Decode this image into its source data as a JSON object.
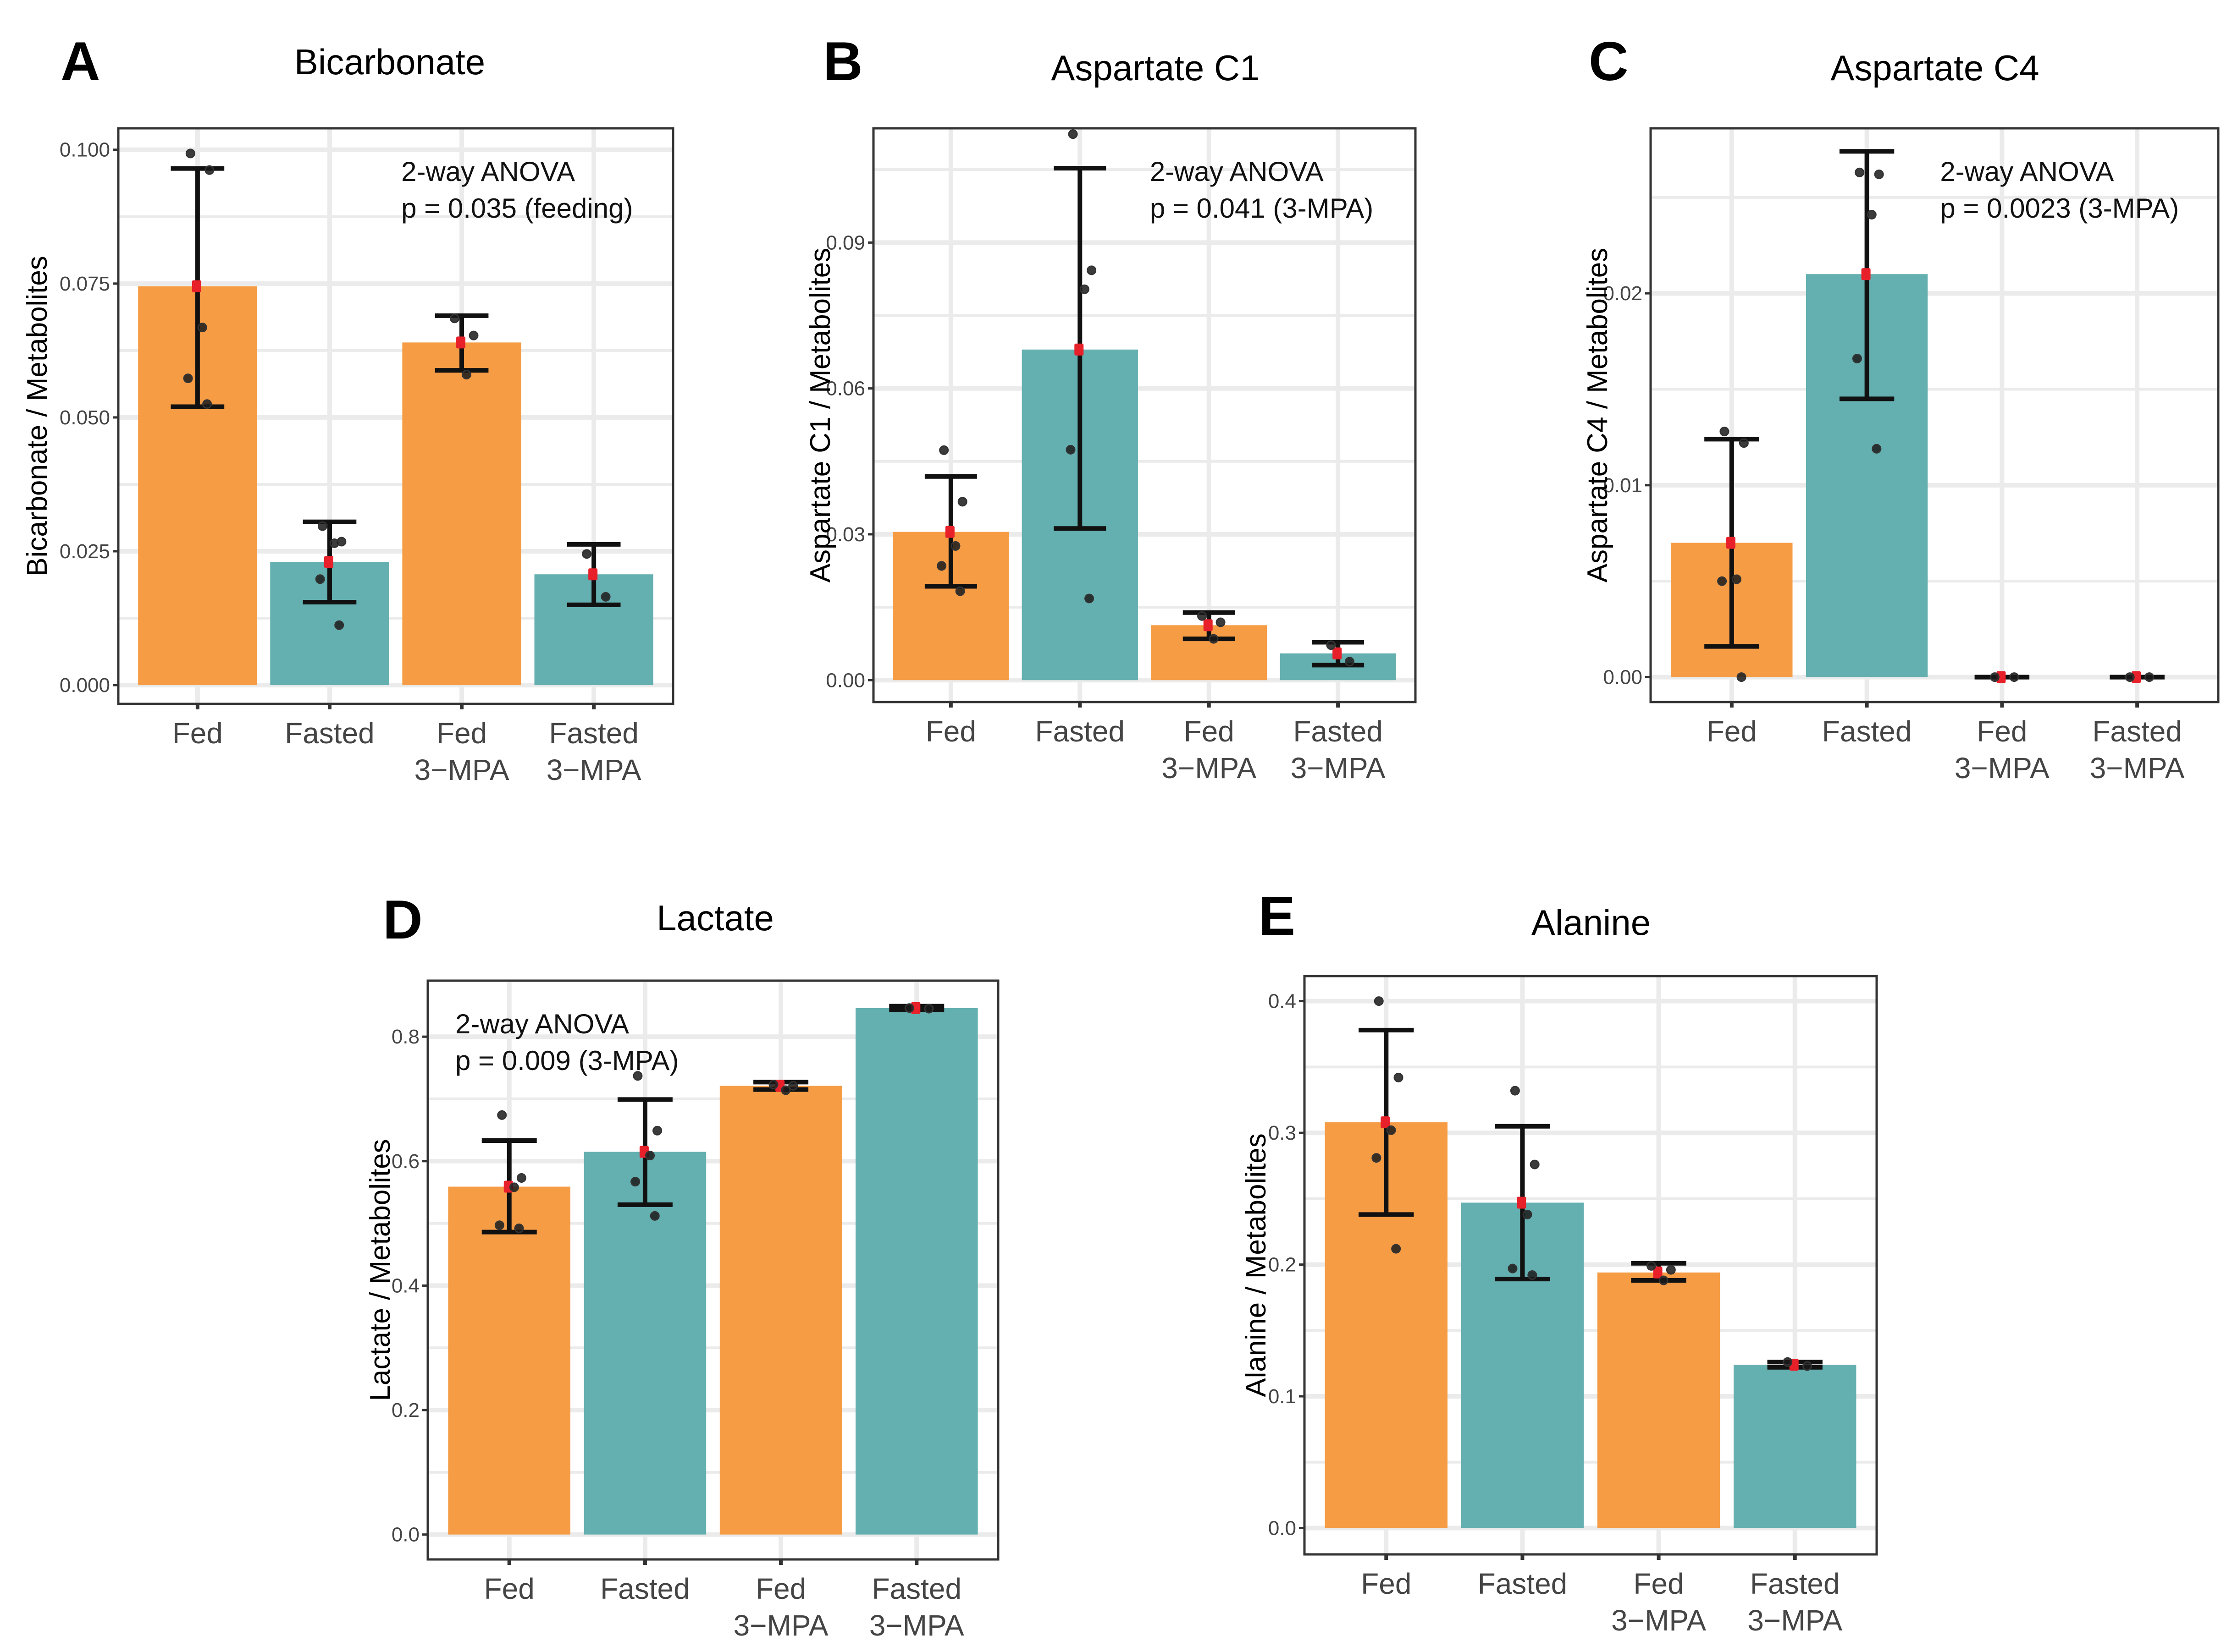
{
  "colors": {
    "fed": "#F5993F",
    "fasted": "#5FACAD",
    "mean_marker": "#E8202A",
    "points": "#1a1a1a",
    "errorbar": "#111111",
    "grid": "#EBEBEB",
    "axis": "#333333"
  },
  "chart_data": [
    {
      "panel": "A",
      "type": "bar",
      "title": "Bicarbonate",
      "xlabel": "",
      "ylabel": "Bicarbonate / Metabolites",
      "ylim": [
        -0.0035,
        0.104
      ],
      "yticks": [
        0.0,
        0.025,
        0.05,
        0.075,
        0.1
      ],
      "ytick_labels": [
        "0.000",
        "0.025",
        "0.050",
        "0.075",
        "0.100"
      ],
      "grid": true,
      "annotation": [
        "2-way ANOVA",
        "p = 0.035 (feeding)"
      ],
      "annotation_position": "top-right",
      "categories": [
        [
          "Fed"
        ],
        [
          "Fasted"
        ],
        [
          "Fed",
          "3−MPA"
        ],
        [
          "Fasted",
          "3−MPA"
        ]
      ],
      "groups": [
        "fed",
        "fasted",
        "fed",
        "fasted"
      ],
      "values": [
        0.0745,
        0.023,
        0.064,
        0.0207
      ],
      "errors": [
        [
          0.052,
          0.0965
        ],
        [
          0.0155,
          0.0305
        ],
        [
          0.0588,
          0.069
        ],
        [
          0.015,
          0.0263
        ]
      ],
      "points": [
        [
          0.0993,
          0.0962,
          0.0668,
          0.0573,
          0.0525
        ],
        [
          0.0297,
          0.0268,
          0.0265,
          0.0198,
          0.0112
        ],
        [
          0.0685,
          0.0653,
          0.058
        ],
        [
          0.0245,
          0.0165
        ]
      ]
    },
    {
      "panel": "B",
      "type": "bar",
      "title": "Aspartate C1",
      "xlabel": "",
      "ylabel": "Aspartate C1 /  Metabolites",
      "ylim": [
        -0.0045,
        0.1135
      ],
      "yticks": [
        0.0,
        0.03,
        0.06,
        0.09
      ],
      "ytick_labels": [
        "0.00",
        "0.03",
        "0.06",
        "0.09"
      ],
      "grid": true,
      "annotation": [
        "2-way ANOVA",
        "p = 0.041 (3-MPA)"
      ],
      "annotation_position": "top-right",
      "categories": [
        [
          "Fed"
        ],
        [
          "Fasted"
        ],
        [
          "Fed",
          "3−MPA"
        ],
        [
          "Fasted",
          "3−MPA"
        ]
      ],
      "groups": [
        "fed",
        "fasted",
        "fed",
        "fasted"
      ],
      "values": [
        0.0305,
        0.068,
        0.0113,
        0.0055
      ],
      "errors": [
        [
          0.0193,
          0.0419
        ],
        [
          0.0312,
          0.1053
        ],
        [
          0.0085,
          0.0139
        ],
        [
          0.0031,
          0.0078
        ]
      ],
      "points": [
        [
          0.0473,
          0.0367,
          0.0276,
          0.0235,
          0.0183
        ],
        [
          0.1123,
          0.0843,
          0.0804,
          0.0474,
          0.0168
        ],
        [
          0.0132,
          0.0119,
          0.0085
        ],
        [
          0.0072,
          0.0038
        ]
      ]
    },
    {
      "panel": "C",
      "type": "bar",
      "title": "Aspartate C4",
      "xlabel": "",
      "ylabel": "Aspartate C4 / Metabolites",
      "ylim": [
        -0.0013,
        0.0286
      ],
      "yticks": [
        0.0,
        0.01,
        0.02
      ],
      "ytick_labels": [
        "0.00",
        "0.01",
        "0.02"
      ],
      "grid": true,
      "annotation": [
        "2-way ANOVA",
        "p = 0.0023 (3-MPA)"
      ],
      "annotation_position": "top-right",
      "categories": [
        [
          "Fed"
        ],
        [
          "Fasted"
        ],
        [
          "Fed",
          "3−MPA"
        ],
        [
          "Fasted",
          "3−MPA"
        ]
      ],
      "groups": [
        "fed",
        "fasted",
        "fed",
        "fasted"
      ],
      "values": [
        0.007,
        0.021,
        0.0,
        0.0
      ],
      "errors": [
        [
          0.0016,
          0.0124
        ],
        [
          0.0145,
          0.0274
        ],
        [
          0.0,
          0.0
        ],
        [
          0.0,
          0.0
        ]
      ],
      "points": [
        [
          0.0128,
          0.0122,
          0.0051,
          0.005,
          0.0
        ],
        [
          0.0263,
          0.0262,
          0.0241,
          0.0166,
          0.0119
        ],
        [
          0.0,
          0.0
        ],
        [
          0.0,
          0.0
        ]
      ]
    },
    {
      "panel": "D",
      "type": "bar",
      "title": "Lactate",
      "xlabel": "",
      "ylabel": "Lactate / Metabolites",
      "ylim": [
        -0.04,
        0.89
      ],
      "yticks": [
        0.0,
        0.2,
        0.4,
        0.6,
        0.8
      ],
      "ytick_labels": [
        "0.0",
        "0.2",
        "0.4",
        "0.6",
        "0.8"
      ],
      "grid": true,
      "annotation": [
        "2-way ANOVA",
        "p = 0.009 (3-MPA)"
      ],
      "annotation_position": "top-left",
      "categories": [
        [
          "Fed"
        ],
        [
          "Fasted"
        ],
        [
          "Fed",
          "3−MPA"
        ],
        [
          "Fasted",
          "3−MPA"
        ]
      ],
      "groups": [
        "fed",
        "fasted",
        "fed",
        "fasted"
      ],
      "values": [
        0.559,
        0.615,
        0.721,
        0.846
      ],
      "errors": [
        [
          0.486,
          0.633
        ],
        [
          0.53,
          0.699
        ],
        [
          0.715,
          0.727
        ],
        [
          0.843,
          0.849
        ]
      ],
      "points": [
        [
          0.674,
          0.573,
          0.558,
          0.497,
          0.492
        ],
        [
          0.737,
          0.649,
          0.609,
          0.567,
          0.512
        ],
        [
          0.723,
          0.721,
          0.714
        ],
        [
          0.846,
          0.845
        ]
      ]
    },
    {
      "panel": "E",
      "type": "bar",
      "title": "Alanine",
      "xlabel": "",
      "ylabel": "Alanine / Metabolites",
      "ylim": [
        -0.02,
        0.419
      ],
      "yticks": [
        0.0,
        0.1,
        0.2,
        0.3,
        0.4
      ],
      "ytick_labels": [
        "0.0",
        "0.1",
        "0.2",
        "0.3",
        "0.4"
      ],
      "grid": true,
      "annotation": [],
      "annotation_position": "",
      "categories": [
        [
          "Fed"
        ],
        [
          "Fasted"
        ],
        [
          "Fed",
          "3−MPA"
        ],
        [
          "Fasted",
          "3−MPA"
        ]
      ],
      "groups": [
        "fed",
        "fasted",
        "fed",
        "fasted"
      ],
      "values": [
        0.308,
        0.247,
        0.194,
        0.124
      ],
      "errors": [
        [
          0.238,
          0.378
        ],
        [
          0.189,
          0.305
        ],
        [
          0.188,
          0.201
        ],
        [
          0.122,
          0.126
        ]
      ],
      "points": [
        [
          0.4,
          0.342,
          0.302,
          0.281,
          0.212
        ],
        [
          0.332,
          0.276,
          0.238,
          0.197,
          0.192
        ],
        [
          0.199,
          0.196,
          0.188
        ],
        [
          0.126,
          0.123
        ]
      ]
    }
  ]
}
